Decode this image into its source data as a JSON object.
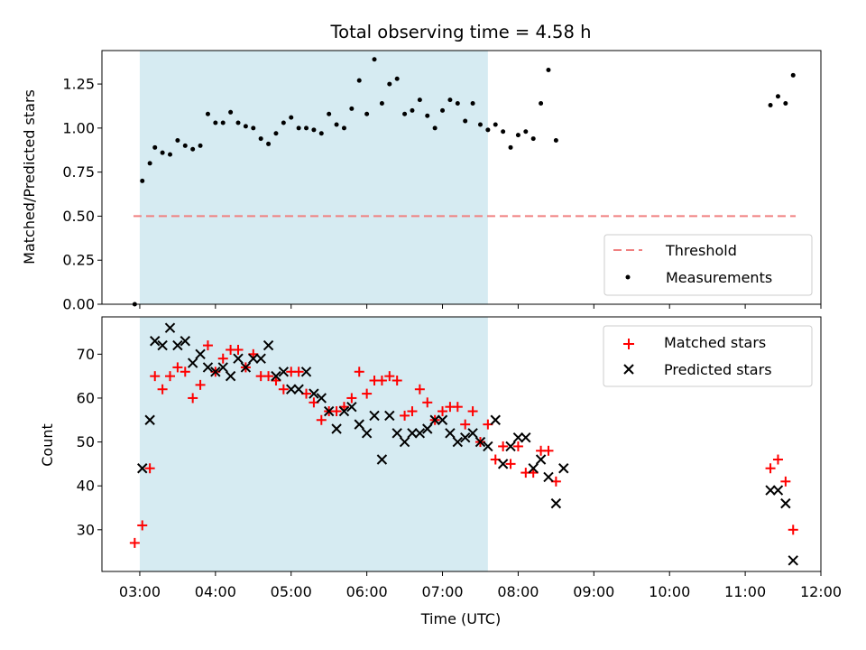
{
  "chart_data": [
    {
      "type": "scatter",
      "title": "Total observing time = 4.58 h",
      "ylabel": "Matched/Predicted stars",
      "xlim": [
        "02:30",
        "12:00"
      ],
      "ylim": [
        0,
        1.44
      ],
      "yticks": [
        0.0,
        0.25,
        0.5,
        0.75,
        1.0,
        1.25
      ],
      "ytick_labels": [
        "0.00",
        "0.25",
        "0.50",
        "0.75",
        "1.00",
        "1.25"
      ],
      "shaded_span": {
        "start": "03:00",
        "end": "07:36",
        "color": "#add8e6"
      },
      "threshold": {
        "name": "Threshold",
        "value": 0.5,
        "x_start": "02:55",
        "x_end": "11:40",
        "color": "#f08080"
      },
      "series": [
        {
          "name": "Measurements",
          "color": "#000000",
          "marker": "dot",
          "points": [
            [
              "02:56",
              0.0
            ],
            [
              "03:02",
              0.7
            ],
            [
              "03:08",
              0.8
            ],
            [
              "03:12",
              0.89
            ],
            [
              "03:18",
              0.86
            ],
            [
              "03:24",
              0.85
            ],
            [
              "03:30",
              0.93
            ],
            [
              "03:36",
              0.9
            ],
            [
              "03:42",
              0.88
            ],
            [
              "03:48",
              0.9
            ],
            [
              "03:54",
              1.08
            ],
            [
              "04:00",
              1.03
            ],
            [
              "04:06",
              1.03
            ],
            [
              "04:12",
              1.09
            ],
            [
              "04:18",
              1.03
            ],
            [
              "04:24",
              1.01
            ],
            [
              "04:30",
              1.0
            ],
            [
              "04:36",
              0.94
            ],
            [
              "04:42",
              0.91
            ],
            [
              "04:48",
              0.97
            ],
            [
              "04:54",
              1.03
            ],
            [
              "05:00",
              1.06
            ],
            [
              "05:06",
              1.0
            ],
            [
              "05:12",
              1.0
            ],
            [
              "05:18",
              0.99
            ],
            [
              "05:24",
              0.97
            ],
            [
              "05:30",
              1.08
            ],
            [
              "05:36",
              1.02
            ],
            [
              "05:42",
              1.0
            ],
            [
              "05:48",
              1.11
            ],
            [
              "05:54",
              1.27
            ],
            [
              "06:00",
              1.08
            ],
            [
              "06:06",
              1.39
            ],
            [
              "06:12",
              1.14
            ],
            [
              "06:18",
              1.25
            ],
            [
              "06:24",
              1.28
            ],
            [
              "06:30",
              1.08
            ],
            [
              "06:36",
              1.1
            ],
            [
              "06:42",
              1.16
            ],
            [
              "06:48",
              1.07
            ],
            [
              "06:54",
              1.0
            ],
            [
              "07:00",
              1.1
            ],
            [
              "07:06",
              1.16
            ],
            [
              "07:12",
              1.14
            ],
            [
              "07:18",
              1.04
            ],
            [
              "07:24",
              1.14
            ],
            [
              "07:30",
              1.02
            ],
            [
              "07:36",
              0.99
            ],
            [
              "07:42",
              1.02
            ],
            [
              "07:48",
              0.98
            ],
            [
              "07:54",
              0.89
            ],
            [
              "08:00",
              0.96
            ],
            [
              "08:06",
              0.98
            ],
            [
              "08:12",
              0.94
            ],
            [
              "08:18",
              1.14
            ],
            [
              "08:24",
              1.33
            ],
            [
              "08:30",
              0.93
            ],
            [
              "11:20",
              1.13
            ],
            [
              "11:26",
              1.18
            ],
            [
              "11:32",
              1.14
            ],
            [
              "11:38",
              1.3
            ]
          ]
        }
      ],
      "legend": {
        "placement": "lower-right",
        "entries": [
          "Threshold",
          "Measurements"
        ]
      }
    },
    {
      "type": "scatter",
      "xlabel": "Time (UTC)",
      "ylabel": "Count",
      "xlim": [
        "02:30",
        "12:00"
      ],
      "ylim": [
        20.5,
        78.5
      ],
      "xticks": [
        "03:00",
        "04:00",
        "05:00",
        "06:00",
        "07:00",
        "08:00",
        "09:00",
        "10:00",
        "11:00",
        "12:00"
      ],
      "yticks": [
        30,
        40,
        50,
        60,
        70
      ],
      "ytick_labels": [
        "30",
        "40",
        "50",
        "60",
        "70"
      ],
      "shaded_span": {
        "start": "03:00",
        "end": "07:36",
        "color": "#add8e6"
      },
      "series": [
        {
          "name": "Matched stars",
          "color": "#ff0000",
          "marker": "plus",
          "points": [
            [
              "02:56",
              27
            ],
            [
              "03:02",
              31
            ],
            [
              "03:08",
              44
            ],
            [
              "03:12",
              65
            ],
            [
              "03:18",
              62
            ],
            [
              "03:24",
              65
            ],
            [
              "03:30",
              67
            ],
            [
              "03:36",
              66
            ],
            [
              "03:42",
              60
            ],
            [
              "03:48",
              63
            ],
            [
              "03:54",
              72
            ],
            [
              "04:00",
              66
            ],
            [
              "04:06",
              69
            ],
            [
              "04:12",
              71
            ],
            [
              "04:18",
              71
            ],
            [
              "04:24",
              67
            ],
            [
              "04:30",
              70
            ],
            [
              "04:36",
              65
            ],
            [
              "04:42",
              65
            ],
            [
              "04:48",
              64
            ],
            [
              "04:54",
              62
            ],
            [
              "05:00",
              66
            ],
            [
              "05:06",
              66
            ],
            [
              "05:12",
              61
            ],
            [
              "05:18",
              59
            ],
            [
              "05:24",
              55
            ],
            [
              "05:30",
              57
            ],
            [
              "05:36",
              57
            ],
            [
              "05:42",
              58
            ],
            [
              "05:48",
              60
            ],
            [
              "05:54",
              66
            ],
            [
              "06:00",
              61
            ],
            [
              "06:06",
              64
            ],
            [
              "06:12",
              64
            ],
            [
              "06:18",
              65
            ],
            [
              "06:24",
              64
            ],
            [
              "06:30",
              56
            ],
            [
              "06:36",
              57
            ],
            [
              "06:42",
              62
            ],
            [
              "06:48",
              59
            ],
            [
              "06:54",
              55
            ],
            [
              "07:00",
              57
            ],
            [
              "07:06",
              58
            ],
            [
              "07:12",
              58
            ],
            [
              "07:18",
              54
            ],
            [
              "07:24",
              57
            ],
            [
              "07:30",
              50
            ],
            [
              "07:36",
              54
            ],
            [
              "07:42",
              46
            ],
            [
              "07:48",
              49
            ],
            [
              "07:54",
              45
            ],
            [
              "08:00",
              49
            ],
            [
              "08:06",
              43
            ],
            [
              "08:12",
              43
            ],
            [
              "08:18",
              48
            ],
            [
              "08:24",
              48
            ],
            [
              "08:30",
              41
            ],
            [
              "11:20",
              44
            ],
            [
              "11:26",
              46
            ],
            [
              "11:32",
              41
            ],
            [
              "11:38",
              30
            ]
          ]
        },
        {
          "name": "Predicted stars",
          "color": "#000000",
          "marker": "x",
          "points": [
            [
              "03:02",
              44
            ],
            [
              "03:08",
              55
            ],
            [
              "03:12",
              73
            ],
            [
              "03:18",
              72
            ],
            [
              "03:24",
              76
            ],
            [
              "03:30",
              72
            ],
            [
              "03:36",
              73
            ],
            [
              "03:42",
              68
            ],
            [
              "03:48",
              70
            ],
            [
              "03:54",
              67
            ],
            [
              "04:00",
              66
            ],
            [
              "04:06",
              67
            ],
            [
              "04:12",
              65
            ],
            [
              "04:18",
              69
            ],
            [
              "04:24",
              67
            ],
            [
              "04:30",
              69
            ],
            [
              "04:36",
              69
            ],
            [
              "04:42",
              72
            ],
            [
              "04:48",
              65
            ],
            [
              "04:54",
              66
            ],
            [
              "05:00",
              62
            ],
            [
              "05:06",
              62
            ],
            [
              "05:12",
              66
            ],
            [
              "05:18",
              61
            ],
            [
              "05:24",
              60
            ],
            [
              "05:30",
              57
            ],
            [
              "05:36",
              53
            ],
            [
              "05:42",
              57
            ],
            [
              "05:48",
              58
            ],
            [
              "05:54",
              54
            ],
            [
              "06:00",
              52
            ],
            [
              "06:06",
              56
            ],
            [
              "06:12",
              46
            ],
            [
              "06:18",
              56
            ],
            [
              "06:24",
              52
            ],
            [
              "06:30",
              50
            ],
            [
              "06:36",
              52
            ],
            [
              "06:42",
              52
            ],
            [
              "06:48",
              53
            ],
            [
              "06:54",
              55
            ],
            [
              "07:00",
              55
            ],
            [
              "07:06",
              52
            ],
            [
              "07:12",
              50
            ],
            [
              "07:18",
              51
            ],
            [
              "07:24",
              52
            ],
            [
              "07:30",
              50
            ],
            [
              "07:36",
              49
            ],
            [
              "07:42",
              55
            ],
            [
              "07:48",
              45
            ],
            [
              "07:54",
              49
            ],
            [
              "08:00",
              51
            ],
            [
              "08:06",
              51
            ],
            [
              "08:12",
              44
            ],
            [
              "08:18",
              46
            ],
            [
              "08:24",
              42
            ],
            [
              "08:30",
              36
            ],
            [
              "08:36",
              44
            ],
            [
              "11:20",
              39
            ],
            [
              "11:26",
              39
            ],
            [
              "11:32",
              36
            ],
            [
              "11:38",
              23
            ]
          ]
        }
      ],
      "legend": {
        "placement": "upper-right",
        "entries": [
          "Matched stars",
          "Predicted stars"
        ]
      }
    }
  ]
}
